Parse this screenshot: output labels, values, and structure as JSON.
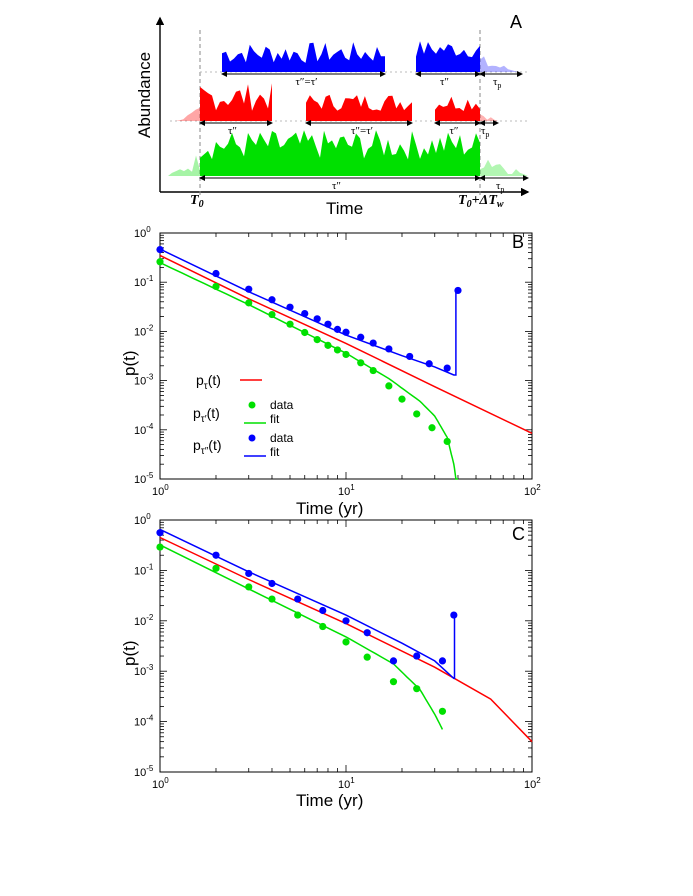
{
  "colors": {
    "red": "#ff0000",
    "green": "#00e000",
    "blue": "#0000ff",
    "black": "#000000"
  },
  "panel_a": {
    "label": "A",
    "ylabel": "Abundance",
    "xlabel": "Time",
    "t0_label": "T",
    "t0_sub": "0",
    "tw_label": "T",
    "tw_sub": "0",
    "tw_suffix": "+ΔT",
    "tw_suffix_sub": "w",
    "tau_dd": "τ″",
    "tau_dd_eq": "τ″=τ′",
    "tau_p": "τ",
    "tau_p_sub": "p"
  },
  "chart_data": [
    {
      "type": "line",
      "panel": "B",
      "xlabel": "Time (yr)",
      "ylabel": "p(t)",
      "xscale": "log",
      "yscale": "log",
      "xlim": [
        1,
        100
      ],
      "ylim": [
        1e-05,
        1
      ],
      "x_ticks": [
        "10^0",
        "10^1",
        "10^2"
      ],
      "y_ticks": [
        "10^0",
        "10^-1",
        "10^-2",
        "10^-3",
        "10^-4",
        "10^-5"
      ],
      "legend": {
        "position": "left",
        "entries": [
          {
            "label": "p",
            "sub": "τ",
            "suffix": "(t)",
            "marker": "line",
            "color": "#ff0000"
          },
          {
            "label": "p",
            "sub": "τ′",
            "suffix": "(t)",
            "marker_label": "data",
            "line_label": "fit",
            "color": "#00e000"
          },
          {
            "label": "p",
            "sub": "τ″",
            "suffix": "(t)",
            "marker_label": "data",
            "line_label": "fit",
            "color": "#0000ff"
          }
        ]
      },
      "series": [
        {
          "name": "pτ(t)",
          "kind": "line",
          "color": "#ff0000",
          "x": [
            1,
            3,
            10,
            30,
            100
          ],
          "y": [
            0.35,
            0.046,
            0.0057,
            0.00075,
            8.5e-05
          ]
        },
        {
          "name": "pτ′(t) data",
          "kind": "scatter",
          "color": "#00e000",
          "x": [
            1,
            2,
            3,
            4,
            5,
            6,
            7,
            8,
            9,
            10,
            12,
            14,
            17,
            20,
            24,
            29,
            35
          ],
          "y": [
            0.26,
            0.082,
            0.038,
            0.022,
            0.014,
            0.0095,
            0.0068,
            0.0052,
            0.0042,
            0.0034,
            0.0023,
            0.0016,
            0.00078,
            0.00042,
            0.00021,
            0.00011,
            5.8e-05
          ]
        },
        {
          "name": "pτ′(t) fit",
          "kind": "line",
          "color": "#00e000",
          "x": [
            1,
            3,
            10,
            17,
            25,
            30,
            35,
            38,
            40
          ],
          "y": [
            0.25,
            0.035,
            0.0036,
            0.0011,
            0.00038,
            0.00019,
            7e-05,
            2e-05,
            5e-06
          ]
        },
        {
          "name": "pτ″(t) data",
          "kind": "scatter",
          "color": "#0000ff",
          "x": [
            1,
            2,
            3,
            4,
            5,
            6,
            7,
            8,
            9,
            10,
            12,
            14,
            17,
            22,
            28,
            35,
            40
          ],
          "y": [
            0.46,
            0.15,
            0.072,
            0.044,
            0.031,
            0.023,
            0.018,
            0.014,
            0.011,
            0.0096,
            0.0076,
            0.0058,
            0.0044,
            0.0031,
            0.0022,
            0.0018,
            0.068
          ]
        },
        {
          "name": "pτ″(t) fit",
          "kind": "line",
          "color": "#0000ff",
          "x": [
            1,
            3,
            10,
            20,
            30,
            38,
            39,
            39
          ],
          "y": [
            0.47,
            0.064,
            0.0084,
            0.0032,
            0.0019,
            0.0013,
            0.0013,
            0.068
          ]
        }
      ]
    },
    {
      "type": "line",
      "panel": "C",
      "xlabel": "Time (yr)",
      "ylabel": "p(t)",
      "xscale": "log",
      "yscale": "log",
      "xlim": [
        1,
        100
      ],
      "ylim": [
        1e-05,
        1
      ],
      "x_ticks": [
        "10^0",
        "10^1",
        "10^2"
      ],
      "y_ticks": [
        "10^0",
        "10^-1",
        "10^-2",
        "10^-3",
        "10^-4",
        "10^-5"
      ],
      "series": [
        {
          "name": "pτ(t)",
          "kind": "line",
          "color": "#ff0000",
          "x": [
            1,
            3,
            10,
            30,
            60,
            100
          ],
          "y": [
            0.45,
            0.066,
            0.0088,
            0.0012,
            0.00028,
            4e-05
          ]
        },
        {
          "name": "pτ′(t) data",
          "kind": "scatter",
          "color": "#00e000",
          "x": [
            1,
            2,
            3,
            4,
            5.5,
            7.5,
            10,
            13,
            18,
            24,
            33
          ],
          "y": [
            0.29,
            0.11,
            0.047,
            0.027,
            0.013,
            0.0077,
            0.0038,
            0.0019,
            0.00062,
            0.00045,
            0.00016
          ]
        },
        {
          "name": "pτ′(t) fit",
          "kind": "line",
          "color": "#00e000",
          "x": [
            1,
            3,
            10,
            18,
            25,
            30,
            33
          ],
          "y": [
            0.32,
            0.043,
            0.0048,
            0.0014,
            0.00043,
            0.00014,
            7e-05
          ]
        },
        {
          "name": "pτ″(t) data",
          "kind": "scatter",
          "color": "#0000ff",
          "x": [
            1,
            2,
            3,
            4,
            5.5,
            7.5,
            10,
            13,
            18,
            24,
            33,
            38
          ],
          "y": [
            0.56,
            0.2,
            0.087,
            0.055,
            0.027,
            0.016,
            0.01,
            0.0058,
            0.0016,
            0.002,
            0.0016,
            0.013
          ]
        },
        {
          "name": "pτ″(t) fit",
          "kind": "line",
          "color": "#0000ff",
          "x": [
            1,
            3,
            10,
            20,
            30,
            38,
            38.3,
            38.3
          ],
          "y": [
            0.65,
            0.094,
            0.013,
            0.0036,
            0.0016,
            0.00072,
            0.00072,
            0.013
          ]
        }
      ]
    }
  ]
}
